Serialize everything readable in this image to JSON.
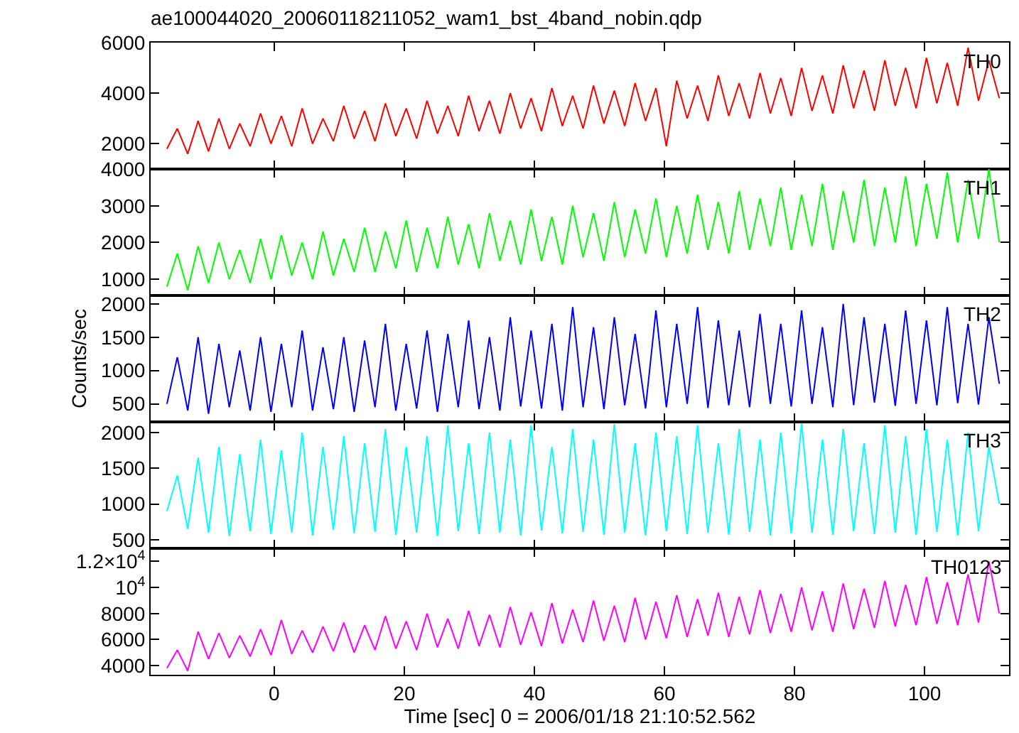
{
  "chart_data": [
    {
      "type": "line",
      "title": "ae100044020_20060118211052_wam1_bst_4band_nobin.qdp",
      "tick_labels": "y",
      "xlim": [
        -19,
        113
      ],
      "ylim": [
        1000,
        6000
      ],
      "yticks": [
        2000,
        4000,
        6000
      ],
      "legend": false,
      "x": [
        -16.5,
        -14.9,
        -13.3,
        -11.7,
        -10.1,
        -8.5,
        -6.9,
        -5.3,
        -3.7,
        -2.1,
        -0.5,
        1.1,
        2.7,
        4.3,
        5.9,
        7.5,
        9.1,
        10.7,
        12.3,
        13.9,
        15.5,
        17.1,
        18.7,
        20.3,
        21.9,
        23.5,
        25.1,
        26.7,
        28.3,
        29.9,
        31.5,
        33.1,
        34.7,
        36.3,
        37.9,
        39.5,
        41.1,
        42.7,
        44.3,
        45.9,
        47.5,
        49.1,
        50.7,
        52.3,
        53.9,
        55.5,
        57.1,
        58.7,
        60.3,
        61.9,
        63.5,
        65.1,
        66.7,
        68.3,
        69.9,
        71.5,
        73.1,
        74.7,
        76.3,
        77.9,
        79.5,
        81.1,
        82.7,
        84.3,
        85.9,
        87.5,
        89.1,
        90.7,
        92.3,
        93.9,
        95.5,
        97.1,
        98.7,
        100.3,
        101.9,
        103.5,
        105.1,
        106.7,
        108.3,
        109.9,
        111.5
      ],
      "series": [
        {
          "name": "TH0",
          "color": "#ff0000",
          "values": [
            1800,
            2600,
            1600,
            2900,
            1700,
            3000,
            1800,
            2800,
            1900,
            3200,
            2000,
            3100,
            1900,
            3400,
            2000,
            3000,
            2100,
            3500,
            2200,
            3300,
            2100,
            3600,
            2300,
            3400,
            2200,
            3700,
            2400,
            3500,
            2300,
            3900,
            2500,
            3700,
            2400,
            4000,
            2600,
            3800,
            2500,
            4200,
            2700,
            3900,
            2600,
            4300,
            2800,
            4100,
            2700,
            4400,
            2900,
            4200,
            1900,
            4500,
            3000,
            4300,
            2900,
            4700,
            3100,
            4400,
            3000,
            4800,
            3200,
            4600,
            3100,
            5000,
            3300,
            4700,
            3200,
            5100,
            3400,
            4900,
            3300,
            5300,
            3500,
            5000,
            3400,
            5400,
            3600,
            5200,
            3500,
            5800,
            3700,
            5300,
            3800
          ]
        }
      ]
    },
    {
      "type": "line",
      "tick_labels": "y",
      "xlim": [
        -19,
        113
      ],
      "ylim": [
        560,
        4000
      ],
      "yticks": [
        1000,
        2000,
        3000,
        4000
      ],
      "legend": false,
      "x": [
        -16.5,
        -14.9,
        -13.3,
        -11.7,
        -10.1,
        -8.5,
        -6.9,
        -5.3,
        -3.7,
        -2.1,
        -0.5,
        1.1,
        2.7,
        4.3,
        5.9,
        7.5,
        9.1,
        10.7,
        12.3,
        13.9,
        15.5,
        17.1,
        18.7,
        20.3,
        21.9,
        23.5,
        25.1,
        26.7,
        28.3,
        29.9,
        31.5,
        33.1,
        34.7,
        36.3,
        37.9,
        39.5,
        41.1,
        42.7,
        44.3,
        45.9,
        47.5,
        49.1,
        50.7,
        52.3,
        53.9,
        55.5,
        57.1,
        58.7,
        60.3,
        61.9,
        63.5,
        65.1,
        66.7,
        68.3,
        69.9,
        71.5,
        73.1,
        74.7,
        76.3,
        77.9,
        79.5,
        81.1,
        82.7,
        84.3,
        85.9,
        87.5,
        89.1,
        90.7,
        92.3,
        93.9,
        95.5,
        97.1,
        98.7,
        100.3,
        101.9,
        103.5,
        105.1,
        106.7,
        108.3,
        109.9,
        111.5
      ],
      "series": [
        {
          "name": "TH1",
          "color": "#00ff00",
          "values": [
            800,
            1700,
            700,
            1900,
            900,
            2000,
            1000,
            1800,
            900,
            2100,
            1000,
            2200,
            1100,
            2000,
            1000,
            2300,
            1100,
            2100,
            1200,
            2400,
            1200,
            2300,
            1300,
            2600,
            1200,
            2400,
            1300,
            2700,
            1400,
            2500,
            1300,
            2800,
            1500,
            2600,
            1400,
            2900,
            1500,
            2700,
            1400,
            3000,
            1600,
            2800,
            1500,
            3100,
            1600,
            2900,
            1700,
            3200,
            1600,
            3000,
            1700,
            3300,
            1800,
            3100,
            1700,
            3400,
            1800,
            3200,
            1900,
            3500,
            1800,
            3300,
            1900,
            3600,
            1800,
            3400,
            2000,
            3700,
            1900,
            3500,
            2000,
            3800,
            1900,
            3600,
            2100,
            3900,
            2000,
            3700,
            2100,
            4000,
            2000
          ]
        }
      ]
    },
    {
      "type": "line",
      "ylabel": "Counts/sec",
      "tick_labels": "y",
      "xlim": [
        -19,
        113
      ],
      "ylim": [
        230,
        2125
      ],
      "yticks": [
        500,
        1000,
        1500,
        2000
      ],
      "legend": false,
      "x": [
        -16.5,
        -14.9,
        -13.3,
        -11.7,
        -10.1,
        -8.5,
        -6.9,
        -5.3,
        -3.7,
        -2.1,
        -0.5,
        1.1,
        2.7,
        4.3,
        5.9,
        7.5,
        9.1,
        10.7,
        12.3,
        13.9,
        15.5,
        17.1,
        18.7,
        20.3,
        21.9,
        23.5,
        25.1,
        26.7,
        28.3,
        29.9,
        31.5,
        33.1,
        34.7,
        36.3,
        37.9,
        39.5,
        41.1,
        42.7,
        44.3,
        45.9,
        47.5,
        49.1,
        50.7,
        52.3,
        53.9,
        55.5,
        57.1,
        58.7,
        60.3,
        61.9,
        63.5,
        65.1,
        66.7,
        68.3,
        69.9,
        71.5,
        73.1,
        74.7,
        76.3,
        77.9,
        79.5,
        81.1,
        82.7,
        84.3,
        85.9,
        87.5,
        89.1,
        90.7,
        92.3,
        93.9,
        95.5,
        97.1,
        98.7,
        100.3,
        101.9,
        103.5,
        105.1,
        106.7,
        108.3,
        109.9,
        111.5
      ],
      "series": [
        {
          "name": "TH2",
          "color": "#0000ff",
          "values": [
            500,
            1200,
            400,
            1500,
            350,
            1400,
            450,
            1300,
            400,
            1500,
            380,
            1400,
            450,
            1600,
            400,
            1350,
            420,
            1500,
            380,
            1450,
            450,
            1700,
            400,
            1400,
            430,
            1600,
            380,
            1550,
            450,
            1750,
            420,
            1500,
            400,
            1800,
            460,
            1600,
            430,
            1700,
            400,
            1950,
            450,
            1650,
            420,
            1800,
            480,
            1550,
            430,
            1900,
            450,
            1700,
            500,
            1950,
            440,
            1750,
            480,
            1600,
            450,
            1850,
            500,
            1700,
            460,
            1900,
            500,
            1650,
            450,
            2000,
            480,
            1800,
            520,
            1700,
            470,
            1900,
            500,
            1750,
            480,
            1950,
            510,
            1700,
            490,
            1800,
            800
          ]
        }
      ]
    },
    {
      "type": "line",
      "tick_labels": "y",
      "xlim": [
        -19,
        113
      ],
      "ylim": [
        380,
        2150
      ],
      "yticks": [
        500,
        1000,
        1500,
        2000
      ],
      "legend": false,
      "x": [
        -16.5,
        -14.9,
        -13.3,
        -11.7,
        -10.1,
        -8.5,
        -6.9,
        -5.3,
        -3.7,
        -2.1,
        -0.5,
        1.1,
        2.7,
        4.3,
        5.9,
        7.5,
        9.1,
        10.7,
        12.3,
        13.9,
        15.5,
        17.1,
        18.7,
        20.3,
        21.9,
        23.5,
        25.1,
        26.7,
        28.3,
        29.9,
        31.5,
        33.1,
        34.7,
        36.3,
        37.9,
        39.5,
        41.1,
        42.7,
        44.3,
        45.9,
        47.5,
        49.1,
        50.7,
        52.3,
        53.9,
        55.5,
        57.1,
        58.7,
        60.3,
        61.9,
        63.5,
        65.1,
        66.7,
        68.3,
        69.9,
        71.5,
        73.1,
        74.7,
        76.3,
        77.9,
        79.5,
        81.1,
        82.7,
        84.3,
        85.9,
        87.5,
        89.1,
        90.7,
        92.3,
        93.9,
        95.5,
        97.1,
        98.7,
        100.3,
        101.9,
        103.5,
        105.1,
        106.7,
        108.3,
        109.9,
        111.5
      ],
      "series": [
        {
          "name": "TH3",
          "color": "#00ffff",
          "values": [
            900,
            1400,
            650,
            1650,
            600,
            1800,
            550,
            1700,
            620,
            1900,
            580,
            1750,
            600,
            2000,
            560,
            1800,
            640,
            1950,
            590,
            1850,
            610,
            2050,
            570,
            1800,
            600,
            1950,
            550,
            2100,
            620,
            1850,
            580,
            2000,
            600,
            1900,
            560,
            2100,
            630,
            1800,
            590,
            2050,
            610,
            1900,
            570,
            2120,
            600,
            1850,
            560,
            2000,
            620,
            1950,
            580,
            2100,
            600,
            1850,
            570,
            2050,
            610,
            1900,
            560,
            2000,
            590,
            2130,
            600,
            1900,
            570,
            2050,
            620,
            1850,
            580,
            2100,
            600,
            1950,
            570,
            2050,
            610,
            1900,
            560,
            2000,
            620,
            1800,
            1000
          ]
        }
      ]
    },
    {
      "type": "line",
      "xlabel": "Time [sec] 0 = 2006/01/18 21:10:52.562",
      "xlim": [
        -19,
        113
      ],
      "xticks": [
        0,
        20,
        40,
        60,
        80,
        100
      ],
      "ylim": [
        3300,
        13000
      ],
      "yticks": [
        4000,
        6000,
        8000,
        {
          "value": 10000,
          "label": "10$^{4}$"
        },
        {
          "value": 12000,
          "label": "1.2×10$^{4}$"
        }
      ],
      "legend": false,
      "x": [
        -16.5,
        -14.9,
        -13.3,
        -11.7,
        -10.1,
        -8.5,
        -6.9,
        -5.3,
        -3.7,
        -2.1,
        -0.5,
        1.1,
        2.7,
        4.3,
        5.9,
        7.5,
        9.1,
        10.7,
        12.3,
        13.9,
        15.5,
        17.1,
        18.7,
        20.3,
        21.9,
        23.5,
        25.1,
        26.7,
        28.3,
        29.9,
        31.5,
        33.1,
        34.7,
        36.3,
        37.9,
        39.5,
        41.1,
        42.7,
        44.3,
        45.9,
        47.5,
        49.1,
        50.7,
        52.3,
        53.9,
        55.5,
        57.1,
        58.7,
        60.3,
        61.9,
        63.5,
        65.1,
        66.7,
        68.3,
        69.9,
        71.5,
        73.1,
        74.7,
        76.3,
        77.9,
        79.5,
        81.1,
        82.7,
        84.3,
        85.9,
        87.5,
        89.1,
        90.7,
        92.3,
        93.9,
        95.5,
        97.1,
        98.7,
        100.3,
        101.9,
        103.5,
        105.1,
        106.7,
        108.3,
        109.9,
        111.5
      ],
      "series": [
        {
          "name": "TH0123",
          "color": "#ff00ff",
          "values": [
            3800,
            5200,
            3600,
            6600,
            4500,
            6500,
            4600,
            6300,
            4700,
            6800,
            4800,
            7500,
            4900,
            6700,
            5000,
            7000,
            5100,
            7300,
            5000,
            7100,
            5200,
            7800,
            5300,
            7400,
            5200,
            8000,
            5400,
            7600,
            5300,
            8200,
            5500,
            7900,
            5400,
            8500,
            5600,
            8100,
            5500,
            8800,
            5700,
            8300,
            5800,
            9000,
            5900,
            8600,
            5800,
            9200,
            6000,
            8900,
            6100,
            9400,
            6200,
            9100,
            6300,
            9600,
            6200,
            9300,
            6400,
            9800,
            6500,
            9500,
            6600,
            10000,
            6700,
            9700,
            6600,
            10300,
            6800,
            9900,
            6900,
            10500,
            7000,
            10200,
            7100,
            10800,
            7200,
            10400,
            7100,
            11000,
            7300,
            12000,
            8000
          ]
        }
      ]
    }
  ]
}
